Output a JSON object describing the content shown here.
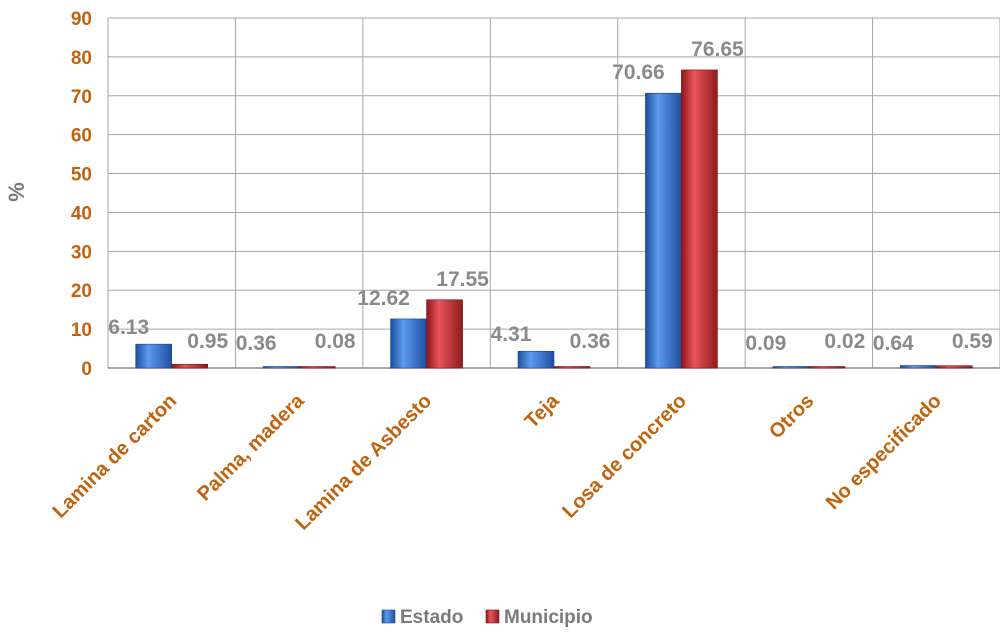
{
  "chart_data": {
    "type": "bar",
    "categories": [
      "Lamina de carton",
      "Palma, madera",
      "Lamina de Asbesto",
      "Teja",
      "Losa de concreto",
      "Otros",
      "No especificado"
    ],
    "series": [
      {
        "name": "Estado",
        "values": [
          6.13,
          0.36,
          12.62,
          4.31,
          70.66,
          0.09,
          0.64
        ],
        "labels": [
          "6.13",
          "0.36",
          "12.62",
          "4.31",
          "70.66",
          "0.09",
          "0.64"
        ],
        "color": "#2f6fd1"
      },
      {
        "name": "Municipio",
        "values": [
          0.95,
          0.08,
          17.55,
          0.36,
          76.65,
          0.02,
          0.59
        ],
        "labels": [
          "0.95",
          "0.08",
          "17.55",
          "0.36",
          "76.65",
          "0.02",
          "0.59"
        ],
        "color": "#c9282c"
      }
    ],
    "ylabel": "%",
    "ylim": [
      0,
      90
    ],
    "yticks": [
      "0",
      "10",
      "20",
      "30",
      "40",
      "50",
      "60",
      "70",
      "80",
      "90"
    ],
    "grid": true,
    "legend_position": "bottom"
  }
}
